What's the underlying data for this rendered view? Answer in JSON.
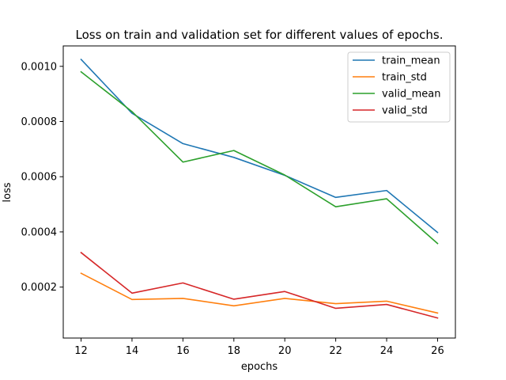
{
  "chart_data": {
    "type": "line",
    "title": "Loss on train and validation set for different values of epochs.",
    "xlabel": "epochs",
    "ylabel": "loss",
    "x": [
      12,
      14,
      16,
      18,
      20,
      22,
      24,
      26
    ],
    "xticks": [
      "12",
      "14",
      "16",
      "18",
      "20",
      "22",
      "24",
      "26"
    ],
    "yticks": [
      "0.0002",
      "0.0004",
      "0.0006",
      "0.0008",
      "0.0010"
    ],
    "ytick_values": [
      0.0002,
      0.0004,
      0.0006,
      0.0008,
      0.001
    ],
    "xlim": [
      11.3,
      26.7
    ],
    "ylim": [
      1.53e-05,
      0.001074
    ],
    "grid": false,
    "legend_position": "top-right",
    "series": [
      {
        "name": "train_mean",
        "color": "#1f77b4",
        "values": [
          0.001025,
          0.00083,
          0.00072,
          0.00067,
          0.000605,
          0.000525,
          0.00055,
          0.000398
        ]
      },
      {
        "name": "train_std",
        "color": "#ff7f0e",
        "values": [
          0.00025,
          0.000155,
          0.000159,
          0.000132,
          0.000159,
          0.00014,
          0.000149,
          0.000106
        ]
      },
      {
        "name": "valid_mean",
        "color": "#2ca02c",
        "values": [
          0.00098,
          0.000836,
          0.000653,
          0.000695,
          0.000606,
          0.000491,
          0.00052,
          0.000358
        ]
      },
      {
        "name": "valid_std",
        "color": "#d62728",
        "values": [
          0.000325,
          0.000178,
          0.000215,
          0.000156,
          0.000184,
          0.000123,
          0.000137,
          8.8e-05
        ]
      }
    ]
  }
}
